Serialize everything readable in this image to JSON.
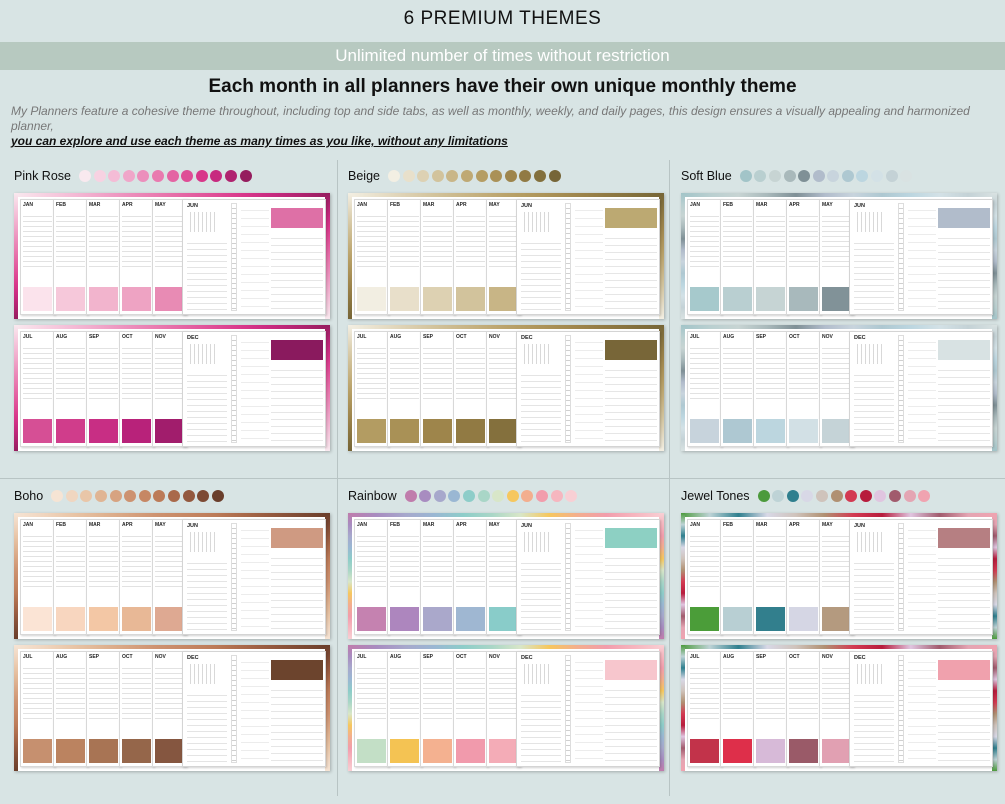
{
  "header": {
    "title": "6 PREMIUM THEMES",
    "banner": "Unlimited number of times without restriction",
    "subtitle": "Each month in all planners have their own unique monthly theme",
    "description": "My Planners feature a cohesive theme throughout, including top and side tabs, as well as monthly, weekly, and daily pages, this design ensures a visually appealing and harmonized planner,",
    "description_emphasis": "you can explore and use each theme as many times as you like, without any limitations"
  },
  "themes": [
    {
      "name": "Pink Rose",
      "swatches": [
        "#f9e9ef",
        "#f7d2e2",
        "#f4bcd6",
        "#f0a6c9",
        "#ec8fbc",
        "#e97aaf",
        "#e464a3",
        "#df4d96",
        "#d8378a",
        "#c72a7f",
        "#b0236f",
        "#951d5e"
      ],
      "month_rows": [
        [
          "JAN",
          "FEB",
          "MAR",
          "APR",
          "MAY",
          "JUN"
        ],
        [
          "JUL",
          "AUG",
          "SEP",
          "OCT",
          "NOV",
          "DEC"
        ]
      ],
      "row_colors": [
        [
          "#fbe3ec",
          "#f6c8da",
          "#f2b4cd",
          "#eea3c3",
          "#e88bb4",
          "#de70a6"
        ],
        [
          "#d64f95",
          "#d03d8b",
          "#c82e84",
          "#b8227a",
          "#a11d6c",
          "#8a1a5e"
        ]
      ]
    },
    {
      "name": "Beige",
      "swatches": [
        "#f3efe3",
        "#e8e0cb",
        "#ddd1b3",
        "#d2c39c",
        "#c9b688",
        "#bfa974",
        "#b59d63",
        "#aa9157",
        "#9e854c",
        "#917a44",
        "#83703d",
        "#766537"
      ],
      "month_rows": [
        [
          "JAN",
          "FEB",
          "MAR",
          "APR",
          "MAY",
          "JUN"
        ],
        [
          "JUL",
          "AUG",
          "SEP",
          "OCT",
          "NOV",
          "DEC"
        ]
      ],
      "row_colors": [
        [
          "#f2eee2",
          "#e8dfca",
          "#ddd1b2",
          "#d2c39c",
          "#c8b586",
          "#bca972"
        ],
        [
          "#b39c62",
          "#a99156",
          "#9e854b",
          "#917a43",
          "#84703d",
          "#786638"
        ]
      ]
    },
    {
      "name": "Soft Blue",
      "swatches": [
        "#a2c4c8",
        "#b9cfd0",
        "#c7d4d3",
        "#a9b9bb",
        "#7f9096",
        "#b1bccb",
        "#c8d4dd",
        "#aec8d1",
        "#bcd6e0",
        "#d3e1e6",
        "#c4d2d6",
        "#d9e2e2"
      ],
      "month_rows": [
        [
          "JAN",
          "FEB",
          "MAR",
          "APR",
          "MAY",
          "JUN"
        ],
        [
          "JUL",
          "AUG",
          "SEP",
          "OCT",
          "NOV",
          "DEC"
        ]
      ],
      "row_colors": [
        [
          "#a6c9cc",
          "#b9cfd1",
          "#c6d4d4",
          "#a8b9bc",
          "#819298",
          "#b1bccb"
        ],
        [
          "#c7d3dc",
          "#aec8d2",
          "#bcd6df",
          "#d2e0e5",
          "#c5d3d7",
          "#d8e2e3"
        ]
      ]
    },
    {
      "name": "Boho",
      "swatches": [
        "#f6e4d4",
        "#f0d6c0",
        "#e9c6a8",
        "#e0b594",
        "#d7a381",
        "#cd9270",
        "#c68764",
        "#bc7b58",
        "#a9694a",
        "#93583e",
        "#7d4a34",
        "#6a3e2b"
      ],
      "month_rows": [
        [
          "JAN",
          "FEB",
          "MAR",
          "APR",
          "MAY",
          "JUN"
        ],
        [
          "JUL",
          "AUG",
          "SEP",
          "OCT",
          "NOV",
          "DEC"
        ]
      ],
      "row_colors": [
        [
          "#fbe4d5",
          "#f8d6bf",
          "#f3c7a5",
          "#e8b896",
          "#dea992",
          "#cf9a82"
        ],
        [
          "#c6906f",
          "#bb8360",
          "#a87454",
          "#95664a",
          "#855640",
          "#6c442d"
        ]
      ]
    },
    {
      "name": "Rainbow",
      "swatches": [
        "#c07cac",
        "#a88cc0",
        "#a7a8cc",
        "#9ab7d3",
        "#8dcdc9",
        "#a9d6c7",
        "#d8e6c8",
        "#f6c75e",
        "#f3ae8e",
        "#f29dac",
        "#f6b6bf",
        "#f8cfd4"
      ],
      "month_rows": [
        [
          "JAN",
          "FEB",
          "MAR",
          "APR",
          "MAY",
          "JUN"
        ],
        [
          "JUL",
          "AUG",
          "SEP",
          "OCT",
          "NOV",
          "DEC"
        ]
      ],
      "row_colors": [
        [
          "#c582b0",
          "#ad86be",
          "#aaa8cb",
          "#9fb7d2",
          "#89ccc9",
          "#8dd0c3"
        ],
        [
          "#c3dfc6",
          "#f4c353",
          "#f4b190",
          "#f19aac",
          "#f4acb7",
          "#f7c6cd"
        ]
      ]
    },
    {
      "name": "Jewel Tones",
      "swatches": [
        "#4c9a3c",
        "#bed3d6",
        "#2f7f8e",
        "#d8d8e6",
        "#cfc3bb",
        "#b09072",
        "#d33a52",
        "#b71c3c",
        "#e0c5e0",
        "#a15b6d",
        "#e4a5b3",
        "#f0a3b0"
      ],
      "month_rows": [
        [
          "JAN",
          "FEB",
          "MAR",
          "APR",
          "MAY",
          "JUN"
        ],
        [
          "JUL",
          "AUG",
          "SEP",
          "OCT",
          "NOV",
          "DEC"
        ]
      ],
      "row_colors": [
        [
          "#4b9d39",
          "#b8cfd3",
          "#327f8d",
          "#d5d6e4",
          "#b49a7f",
          "#b67f82"
        ],
        [
          "#c2334a",
          "#de2f4a",
          "#d7bad8",
          "#9a5a68",
          "#e1a0b2",
          "#f0a1ad"
        ]
      ]
    }
  ]
}
